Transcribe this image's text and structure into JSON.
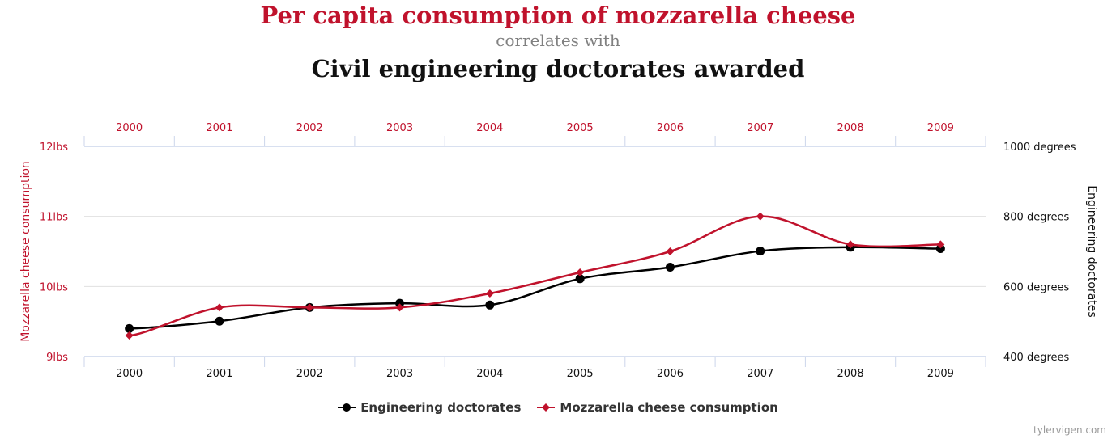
{
  "title": "Per capita consumption of mozzarella cheese",
  "subtitle": "correlates with",
  "title2": "Civil engineering doctorates awarded",
  "credit": "tylervigen.com",
  "colors": {
    "red": "#c0122c",
    "black": "#000000",
    "axis": "#ccd6eb",
    "grid": "#e0e0e0"
  },
  "chart_data": {
    "type": "line",
    "categories": [
      "2000",
      "2001",
      "2002",
      "2003",
      "2004",
      "2005",
      "2006",
      "2007",
      "2008",
      "2009"
    ],
    "left_axis": {
      "label": "Mozzarella cheese consumption",
      "ylim": [
        9,
        12
      ],
      "ticks": [
        "9lbs",
        "10lbs",
        "11lbs",
        "12lbs"
      ]
    },
    "right_axis": {
      "label": "Engineering doctorates",
      "ylim": [
        400,
        1000
      ],
      "ticks": [
        "400 degrees",
        "600 degrees",
        "800 degrees",
        "1000 degrees"
      ]
    },
    "grid": true,
    "legend_position": "bottom",
    "series": [
      {
        "name": "Engineering doctorates",
        "axis": "right",
        "color": "#000000",
        "marker": "circle",
        "values": [
          480,
          501,
          540,
          552,
          547,
          622,
          655,
          701,
          712,
          708
        ]
      },
      {
        "name": "Mozzarella cheese consumption",
        "axis": "left",
        "color": "#c0122c",
        "marker": "diamond",
        "values": [
          9.3,
          9.7,
          9.7,
          9.7,
          9.9,
          10.2,
          10.5,
          11.0,
          10.6,
          10.6
        ]
      }
    ]
  }
}
